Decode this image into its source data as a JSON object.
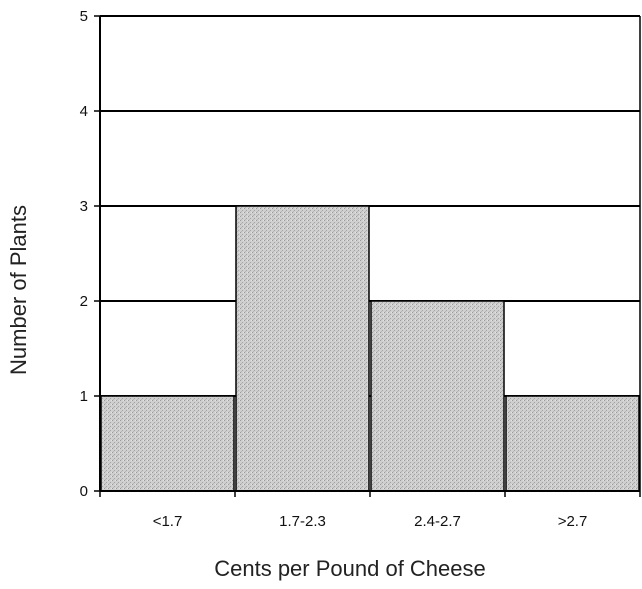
{
  "chart_data": {
    "type": "bar",
    "title": "",
    "xlabel": "Cents per Pound of Cheese",
    "ylabel": "Number of Plants",
    "categories": [
      "<1.7",
      "1.7-2.3",
      "2.4-2.7",
      ">2.7"
    ],
    "values": [
      1,
      3,
      2,
      1
    ],
    "ylim": [
      0,
      5
    ],
    "yticks": [
      "0",
      "1",
      "2",
      "3",
      "4",
      "5"
    ],
    "grid": true,
    "legend": "none",
    "colors": {
      "bar_fill": "#c8c8c8",
      "bar_stroke": "#000000",
      "grid": "#000000",
      "axis": "#000000"
    }
  }
}
